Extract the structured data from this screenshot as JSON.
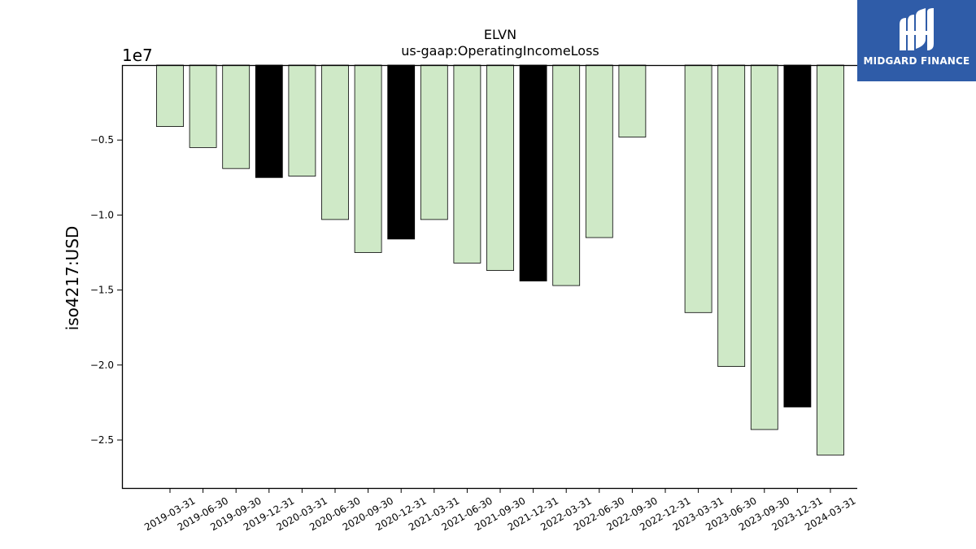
{
  "brand": {
    "name": "MIDGARD FINANCE",
    "bg_color": "#2f5ca8"
  },
  "chart_data": {
    "type": "bar",
    "title": "ELVN",
    "subtitle": "us-gaap:OperatingIncomeLoss",
    "ylabel": "iso4217:USD",
    "xlabel": "",
    "offset_label": "1e7",
    "ylim": [
      -28200000,
      0
    ],
    "yticks": [
      -5000000,
      -10000000,
      -15000000,
      -20000000,
      -25000000
    ],
    "ytick_labels": [
      "−0.5",
      "−1.0",
      "−1.5",
      "−2.0",
      "−2.5"
    ],
    "grid": false,
    "colors": {
      "quarter": "#cfe9c7",
      "year_end": "#000000",
      "edge": "#000000"
    },
    "categories": [
      "2019-03-31",
      "2019-06-30",
      "2019-09-30",
      "2019-12-31",
      "2020-03-31",
      "2020-06-30",
      "2020-09-30",
      "2020-12-31",
      "2021-03-31",
      "2021-06-30",
      "2021-09-30",
      "2021-12-31",
      "2022-03-31",
      "2022-06-30",
      "2022-09-30",
      "2022-12-31",
      "2023-03-31",
      "2023-06-30",
      "2023-09-30",
      "2023-12-31",
      "2024-03-31"
    ],
    "values": [
      -4100000,
      -5500000,
      -6900000,
      -7500000,
      -7400000,
      -10300000,
      -12500000,
      -11600000,
      -10300000,
      -13200000,
      -13700000,
      -14400000,
      -14700000,
      -11500000,
      -4800000,
      null,
      -16500000,
      -20100000,
      -24300000,
      -22800000,
      -26000000
    ],
    "year_end": [
      false,
      false,
      false,
      true,
      false,
      false,
      false,
      true,
      false,
      false,
      false,
      true,
      false,
      false,
      false,
      true,
      false,
      false,
      false,
      true,
      false
    ]
  }
}
